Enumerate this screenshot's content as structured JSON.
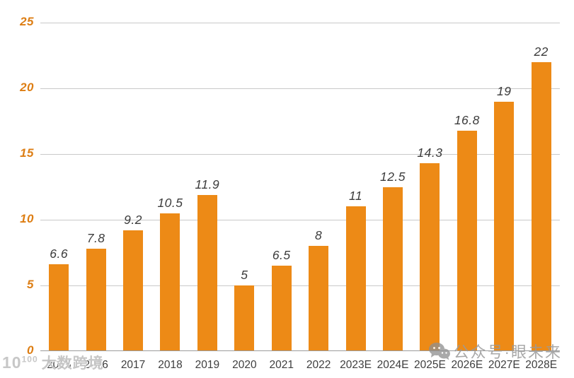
{
  "chart_data": {
    "type": "bar",
    "categories": [
      "2015",
      "2016",
      "2017",
      "2018",
      "2019",
      "2020",
      "2021",
      "2022",
      "2023E",
      "2024E",
      "2025E",
      "2026E",
      "2027E",
      "2028E"
    ],
    "values": [
      6.6,
      7.8,
      9.2,
      10.5,
      11.9,
      5,
      6.5,
      8,
      11,
      12.5,
      14.3,
      16.8,
      19,
      22
    ],
    "value_labels": [
      "6.6",
      "7.8",
      "9.2",
      "10.5",
      "11.9",
      "5",
      "6.5",
      "8",
      "11",
      "12.5",
      "14.3",
      "16.8",
      "19",
      "22"
    ],
    "title": "",
    "xlabel": "",
    "ylabel": "",
    "ylim": [
      0,
      25
    ],
    "yticks": [
      0,
      5,
      10,
      15,
      20,
      25
    ],
    "grid": true,
    "legend_position": "none",
    "bar_color": "#ED8A16",
    "ytick_label_color": "#DD7E14",
    "value_label_color": "#3C3C3C",
    "gridline_color": "#C9C9C9",
    "baseline_color": "#9B9B9B"
  },
  "watermarks": {
    "bottom_left": {
      "logo_base": "10",
      "logo_sup": "100",
      "text": "大数跨境"
    },
    "bottom_right": {
      "icon": "wechat-icon",
      "text": "公众号·眼未来"
    }
  }
}
